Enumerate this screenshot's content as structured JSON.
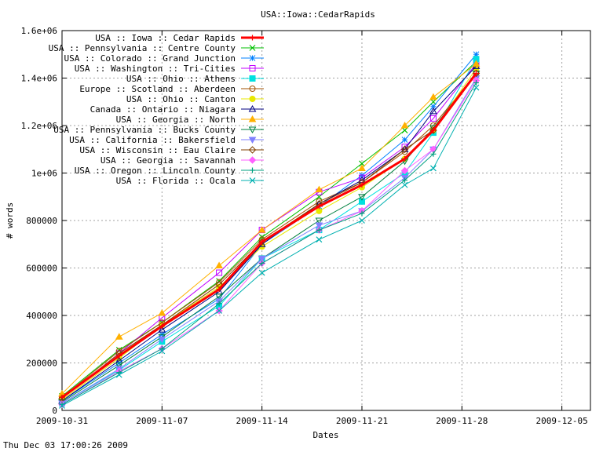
{
  "footer_timestamp": "Thu Dec 03 17:00:26 2009",
  "chart_data": {
    "type": "line",
    "title": "USA::Iowa::CedarRapids",
    "xlabel": "Dates",
    "ylabel": "# words",
    "x_tick_labels": [
      "2009-10-31",
      "2009-11-07",
      "2009-11-14",
      "2009-11-21",
      "2009-11-28",
      "2009-12-05"
    ],
    "y_tick_labels": [
      "0",
      "200000",
      "400000",
      "600000",
      "800000",
      "1e+06",
      "1.2e+06",
      "1.4e+06",
      "1.6e+06"
    ],
    "xlim": [
      "2009-10-31",
      "2009-12-07"
    ],
    "ylim": [
      0,
      1600000
    ],
    "grid": true,
    "legend_position": "top-left",
    "series": [
      {
        "name": "USA :: Iowa :: Cedar Rapids",
        "color": "#ff0000",
        "marker": "plus",
        "x": [
          "2009-10-31",
          "2009-11-04",
          "2009-11-07",
          "2009-11-11",
          "2009-11-14",
          "2009-11-18",
          "2009-11-21",
          "2009-11-24",
          "2009-11-26",
          "2009-11-29"
        ],
        "values": [
          55000,
          230000,
          355000,
          510000,
          710000,
          860000,
          950000,
          1060000,
          1180000,
          1420000
        ]
      },
      {
        "name": "USA :: Pennsylvania :: Centre County",
        "color": "#00c000",
        "marker": "x",
        "x": [
          "2009-10-31",
          "2009-11-04",
          "2009-11-07",
          "2009-11-11",
          "2009-11-14",
          "2009-11-18",
          "2009-11-21",
          "2009-11-24",
          "2009-11-26",
          "2009-11-29"
        ],
        "values": [
          60000,
          255000,
          370000,
          545000,
          730000,
          900000,
          1040000,
          1180000,
          1300000,
          1470000
        ]
      },
      {
        "name": "USA :: Colorado :: Grand Junction",
        "color": "#0080ff",
        "marker": "star",
        "x": [
          "2009-10-31",
          "2009-11-04",
          "2009-11-07",
          "2009-11-11",
          "2009-11-14",
          "2009-11-18",
          "2009-11-21",
          "2009-11-24",
          "2009-11-26",
          "2009-11-29"
        ],
        "values": [
          40000,
          200000,
          320000,
          470000,
          700000,
          860000,
          990000,
          1140000,
          1280000,
          1500000
        ]
      },
      {
        "name": "USA :: Washington :: Tri-Cities",
        "color": "#c000ff",
        "marker": "square",
        "x": [
          "2009-10-31",
          "2009-11-04",
          "2009-11-07",
          "2009-11-11",
          "2009-11-14",
          "2009-11-18",
          "2009-11-21",
          "2009-11-24",
          "2009-11-26",
          "2009-11-29"
        ],
        "values": [
          50000,
          240000,
          390000,
          580000,
          760000,
          920000,
          980000,
          1110000,
          1230000,
          1460000
        ]
      },
      {
        "name": "USA :: Ohio :: Athens",
        "color": "#00e0e0",
        "marker": "filled-square",
        "x": [
          "2009-10-31",
          "2009-11-04",
          "2009-11-07",
          "2009-11-11",
          "2009-11-14",
          "2009-11-18",
          "2009-11-21",
          "2009-11-24",
          "2009-11-26",
          "2009-11-29"
        ],
        "values": [
          30000,
          170000,
          290000,
          440000,
          640000,
          760000,
          880000,
          1000000,
          1170000,
          1480000
        ]
      },
      {
        "name": "Europe :: Scotland :: Aberdeen",
        "color": "#a05000",
        "marker": "circle",
        "x": [
          "2009-10-31",
          "2009-11-04",
          "2009-11-07",
          "2009-11-11",
          "2009-11-14",
          "2009-11-18",
          "2009-11-21",
          "2009-11-24",
          "2009-11-26",
          "2009-11-29"
        ],
        "values": [
          55000,
          250000,
          370000,
          540000,
          720000,
          880000,
          960000,
          1090000,
          1200000,
          1420000
        ]
      },
      {
        "name": "USA :: Ohio :: Canton",
        "color": "#e8e800",
        "marker": "filled-circle",
        "x": [
          "2009-10-31",
          "2009-11-04",
          "2009-11-07",
          "2009-11-11",
          "2009-11-14",
          "2009-11-18",
          "2009-11-21",
          "2009-11-24",
          "2009-11-26",
          "2009-11-29"
        ],
        "values": [
          45000,
          220000,
          360000,
          520000,
          690000,
          840000,
          940000,
          1060000,
          1180000,
          1440000
        ]
      },
      {
        "name": "Canada :: Ontario :: Niagara",
        "color": "#000080",
        "marker": "triangle",
        "x": [
          "2009-10-31",
          "2009-11-04",
          "2009-11-07",
          "2009-11-11",
          "2009-11-14",
          "2009-11-18",
          "2009-11-21",
          "2009-11-24",
          "2009-11-26",
          "2009-11-29"
        ],
        "values": [
          40000,
          210000,
          340000,
          500000,
          700000,
          870000,
          970000,
          1100000,
          1260000,
          1450000
        ]
      },
      {
        "name": "USA :: Georgia :: North",
        "color": "#ffb000",
        "marker": "filled-triangle",
        "x": [
          "2009-10-31",
          "2009-11-04",
          "2009-11-07",
          "2009-11-11",
          "2009-11-14",
          "2009-11-18",
          "2009-11-21",
          "2009-11-24",
          "2009-11-26",
          "2009-11-29"
        ],
        "values": [
          70000,
          310000,
          410000,
          610000,
          760000,
          930000,
          1020000,
          1200000,
          1320000,
          1460000
        ]
      },
      {
        "name": "USA :: Pennsylvania :: Bucks County",
        "color": "#008040",
        "marker": "inverted-triangle",
        "x": [
          "2009-10-31",
          "2009-11-04",
          "2009-11-07",
          "2009-11-11",
          "2009-11-14",
          "2009-11-18",
          "2009-11-21",
          "2009-11-24",
          "2009-11-26",
          "2009-11-29"
        ],
        "values": [
          35000,
          190000,
          310000,
          480000,
          640000,
          800000,
          900000,
          1050000,
          1190000,
          1420000
        ]
      },
      {
        "name": "USA :: California :: Bakersfield",
        "color": "#8080ff",
        "marker": "filled-inverted-triangle",
        "x": [
          "2009-10-31",
          "2009-11-04",
          "2009-11-07",
          "2009-11-11",
          "2009-11-14",
          "2009-11-18",
          "2009-11-21",
          "2009-11-24",
          "2009-11-26",
          "2009-11-29"
        ],
        "values": [
          30000,
          175000,
          300000,
          460000,
          640000,
          780000,
          840000,
          980000,
          1100000,
          1400000
        ]
      },
      {
        "name": "USA :: Wisconsin :: Eau Claire",
        "color": "#804000",
        "marker": "diamond",
        "x": [
          "2009-10-31",
          "2009-11-04",
          "2009-11-07",
          "2009-11-11",
          "2009-11-14",
          "2009-11-18",
          "2009-11-21",
          "2009-11-24",
          "2009-11-26",
          "2009-11-29"
        ],
        "values": [
          50000,
          240000,
          360000,
          530000,
          710000,
          870000,
          960000,
          1100000,
          1180000,
          1420000
        ]
      },
      {
        "name": "USA :: Georgia :: Savannah",
        "color": "#ff60ff",
        "marker": "filled-diamond",
        "x": [
          "2009-10-31",
          "2009-11-04",
          "2009-11-07",
          "2009-11-11",
          "2009-11-14",
          "2009-11-18",
          "2009-11-21",
          "2009-11-24",
          "2009-11-26",
          "2009-11-29"
        ],
        "values": [
          25000,
          165000,
          260000,
          420000,
          620000,
          760000,
          840000,
          1010000,
          1100000,
          1390000
        ]
      },
      {
        "name": "USA :: Oregon :: Lincoln County",
        "color": "#00a080",
        "marker": "plus",
        "x": [
          "2009-10-31",
          "2009-11-04",
          "2009-11-07",
          "2009-11-11",
          "2009-11-14",
          "2009-11-18",
          "2009-11-21",
          "2009-11-24",
          "2009-11-26",
          "2009-11-29"
        ],
        "values": [
          25000,
          160000,
          260000,
          450000,
          620000,
          760000,
          830000,
          970000,
          1080000,
          1380000
        ]
      },
      {
        "name": "USA :: Florida :: Ocala",
        "color": "#00b0b0",
        "marker": "x",
        "x": [
          "2009-10-31",
          "2009-11-04",
          "2009-11-07",
          "2009-11-11",
          "2009-11-14",
          "2009-11-18",
          "2009-11-21",
          "2009-11-24",
          "2009-11-26",
          "2009-11-29"
        ],
        "values": [
          20000,
          150000,
          250000,
          420000,
          580000,
          720000,
          800000,
          950000,
          1020000,
          1360000
        ]
      }
    ]
  }
}
